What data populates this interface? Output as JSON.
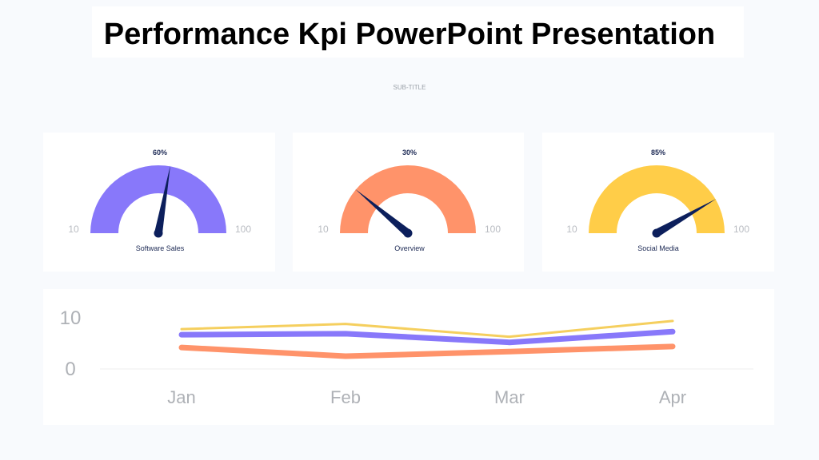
{
  "title": "Performance Kpi PowerPoint Presentation",
  "subtitle": "SUB-TITLE",
  "gauges": [
    {
      "value_label": "60%",
      "value": 60,
      "min": "10",
      "max": "100",
      "label": "Software Sales",
      "color": "#8878fa"
    },
    {
      "value_label": "30%",
      "value": 30,
      "min": "10",
      "max": "100",
      "label": "Overview",
      "color": "#ff936a"
    },
    {
      "value_label": "85%",
      "value": 85,
      "min": "10",
      "max": "100",
      "label": "Social Media",
      "color": "#ffcd48"
    }
  ],
  "needle_color": "#0c1f5c",
  "chart_data": {
    "type": "line",
    "categories": [
      "Jan",
      "Feb",
      "Mar",
      "Apr"
    ],
    "yticks": [
      "0",
      "10"
    ],
    "ylim": [
      0,
      10
    ],
    "grid": false,
    "series": [
      {
        "values": [
          7.8,
          8.8,
          6.3,
          9.4
        ],
        "color": "#f5cf5e"
      },
      {
        "values": [
          6.7,
          6.9,
          5.2,
          7.3
        ],
        "color": "#8878fa"
      },
      {
        "values": [
          4.2,
          2.5,
          3.4,
          4.4
        ],
        "color": "#ff936a"
      }
    ]
  }
}
